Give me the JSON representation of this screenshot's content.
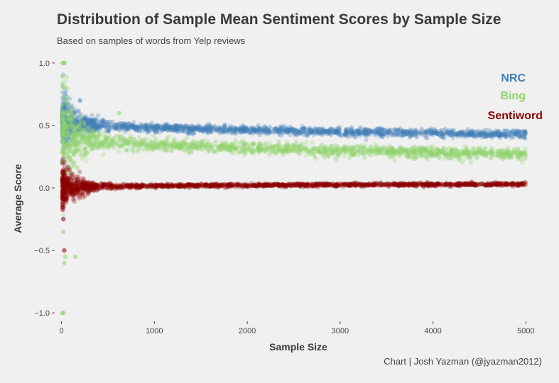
{
  "chart_data": {
    "type": "scatter",
    "title": "Distribution of Sample Mean Sentiment Scores by Sample Size",
    "subtitle": "Based on samples of words from Yelp reviews",
    "caption": "Chart | Josh Yazman (@jyazman2012)",
    "xlabel": "Sample Size",
    "ylabel": "Average Score",
    "xlim": [
      -50,
      5150
    ],
    "ylim": [
      -1.05,
      1.05
    ],
    "x_ticks": [
      0,
      1000,
      2000,
      3000,
      4000,
      5000
    ],
    "x_tick_labels": [
      "0",
      "1000",
      "2000",
      "3000",
      "4000",
      "5000"
    ],
    "y_ticks": [
      1.0,
      0.5,
      0.0,
      -0.5,
      -1.0
    ],
    "y_tick_labels": [
      "1.0",
      "0.5",
      "0.0",
      "−0.5",
      "−1.0"
    ],
    "grid": false,
    "legend_placement": "top-right",
    "series": [
      {
        "name": "NRC",
        "color": "#3f7fb8",
        "center_start": 0.55,
        "center_end": 0.43,
        "spread_at_small": 0.25,
        "spread_at_large": 0.035,
        "x_range": [
          10,
          5000
        ]
      },
      {
        "name": "Bing",
        "color": "#8fd36a",
        "center_start": 0.45,
        "center_end": 0.27,
        "spread_at_small": 0.45,
        "spread_at_large": 0.05,
        "x_range": [
          10,
          5000
        ]
      },
      {
        "name": "Sentiword",
        "color": "#8b0000",
        "center_start": 0.0,
        "center_end": 0.03,
        "spread_at_small": 0.2,
        "spread_at_large": 0.014,
        "x_range": [
          10,
          5000
        ]
      }
    ],
    "outliers": [
      {
        "series": "Bing",
        "x": 15,
        "y": 1.0
      },
      {
        "series": "Bing",
        "x": 25,
        "y": 1.0
      },
      {
        "series": "Bing",
        "x": 35,
        "y": 1.0
      },
      {
        "series": "Bing",
        "x": 10,
        "y": -1.0
      },
      {
        "series": "Bing",
        "x": 20,
        "y": -1.0
      },
      {
        "series": "Bing",
        "x": 30,
        "y": -0.6
      },
      {
        "series": "Bing",
        "x": 40,
        "y": -0.55
      },
      {
        "series": "Bing",
        "x": 150,
        "y": -0.55
      },
      {
        "series": "Bing",
        "x": 20,
        "y": -0.35
      },
      {
        "series": "NRC",
        "x": 200,
        "y": 0.7
      },
      {
        "series": "Bing",
        "x": 620,
        "y": 0.6
      },
      {
        "series": "Sentiword",
        "x": 30,
        "y": -0.5
      },
      {
        "series": "Sentiword",
        "x": 20,
        "y": -0.25
      }
    ]
  }
}
